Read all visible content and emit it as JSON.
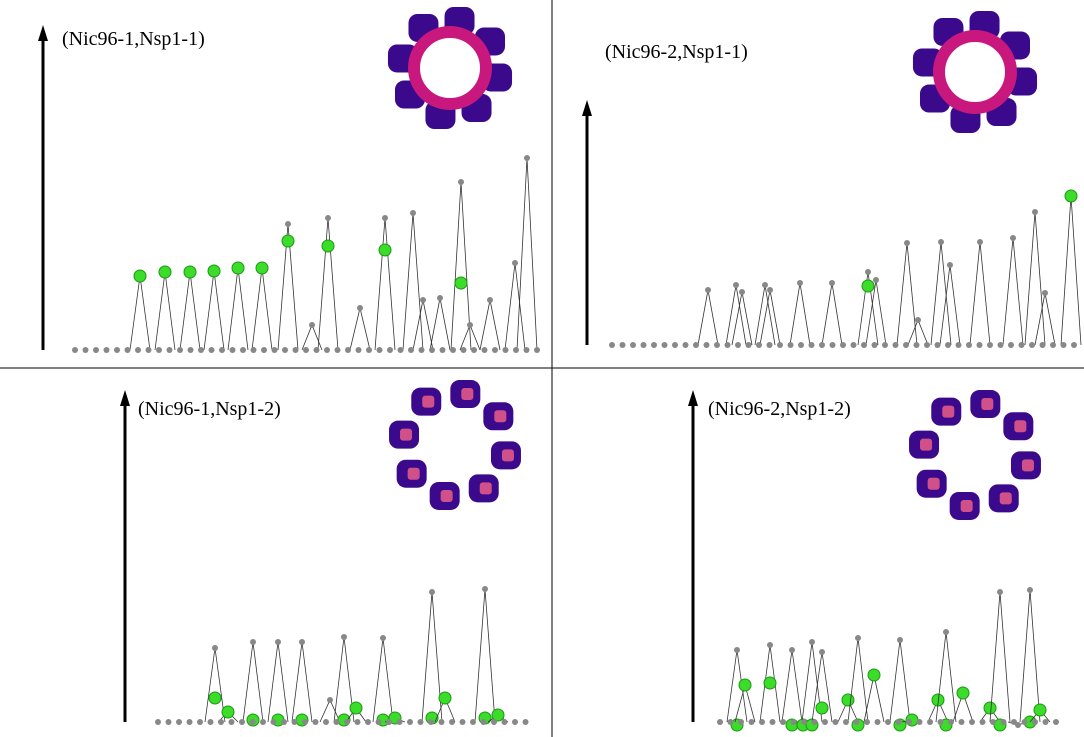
{
  "panels": [
    {
      "label": "(Nic96-1,Nsp1-1)"
    },
    {
      "label": "(Nic96-2,Nsp1-1)"
    },
    {
      "label": "(Nic96-1,Nsp1-2)"
    },
    {
      "label": "(Nic96-2,Nsp1-2)"
    }
  ]
}
